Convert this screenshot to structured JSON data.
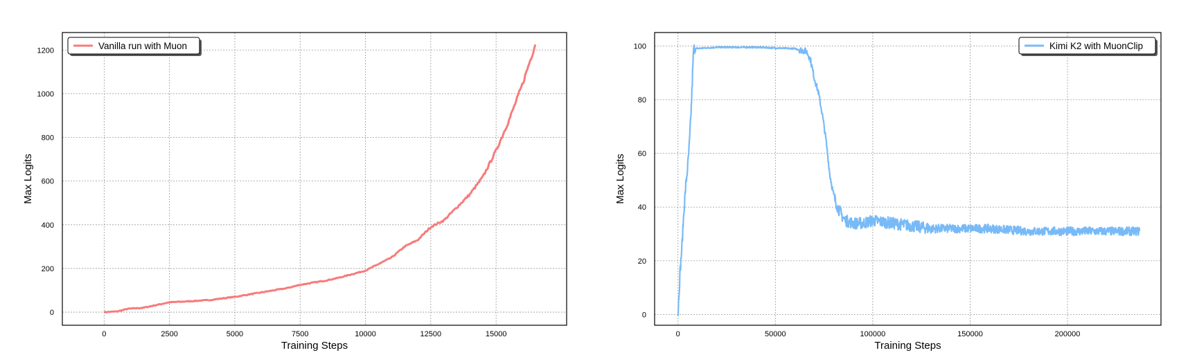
{
  "chart_data": [
    {
      "type": "line",
      "xlabel": "Training Steps",
      "ylabel": "Max Logits",
      "xlim": [
        -1600,
        17700
      ],
      "ylim": [
        -60,
        1280
      ],
      "xticks": [
        0,
        2500,
        5000,
        7500,
        10000,
        12500,
        15000
      ],
      "yticks": [
        0,
        200,
        400,
        600,
        800,
        1000,
        1200
      ],
      "x_tick_labels": [
        "0",
        "2500",
        "5000",
        "7500",
        "10000",
        "12500",
        "15000"
      ],
      "y_tick_labels": [
        "0",
        "200",
        "400",
        "600",
        "800",
        "1000",
        "1200"
      ],
      "grid": true,
      "legend_position": "top-left",
      "series": [
        {
          "name": "Vanilla run with Muon",
          "color": "#f77b7b",
          "x": [
            0,
            500,
            900,
            1500,
            2500,
            3000,
            4000,
            5000,
            6000,
            7000,
            7500,
            8500,
            9000,
            10000,
            10500,
            11000,
            11500,
            12000,
            12500,
            13000,
            13500,
            14000,
            14500,
            15000,
            15500,
            16000,
            16500
          ],
          "values": [
            0,
            3,
            15,
            20,
            45,
            48,
            55,
            70,
            90,
            110,
            125,
            145,
            158,
            190,
            220,
            250,
            300,
            330,
            390,
            420,
            480,
            540,
            620,
            740,
            880,
            1040,
            1225
          ]
        }
      ]
    },
    {
      "type": "line",
      "xlabel": "Training Steps",
      "ylabel": "Max Logits",
      "xlim": [
        -12000,
        248000
      ],
      "ylim": [
        -4,
        105
      ],
      "xticks": [
        0,
        50000,
        100000,
        150000,
        200000
      ],
      "yticks": [
        0,
        20,
        40,
        60,
        80,
        100
      ],
      "x_tick_labels": [
        "0",
        "50000",
        "100000",
        "150000",
        "200000"
      ],
      "y_tick_labels": [
        "0",
        "20",
        "40",
        "60",
        "80",
        "100"
      ],
      "grid": true,
      "legend_position": "top-right",
      "series": [
        {
          "name": "Kimi K2 with MuonClip",
          "color": "#78baf7",
          "x": [
            0,
            1000,
            2000,
            3000,
            4000,
            5000,
            6000,
            7000,
            8000,
            20000,
            40000,
            60000,
            66000,
            68000,
            70000,
            72000,
            74000,
            76000,
            78000,
            80000,
            82000,
            84000,
            86000,
            90000,
            95000,
            100000,
            110000,
            120000,
            130000,
            140000,
            150000,
            160000,
            180000,
            200000,
            220000,
            237000
          ],
          "values": [
            0,
            15,
            25,
            38,
            48,
            55,
            65,
            80,
            99,
            99.5,
            99.5,
            99,
            98,
            95,
            88,
            83,
            75,
            65,
            52,
            44,
            40,
            37,
            35,
            34,
            34,
            35,
            34,
            33,
            32,
            32,
            32,
            32,
            31,
            31,
            31,
            31
          ]
        }
      ]
    }
  ]
}
